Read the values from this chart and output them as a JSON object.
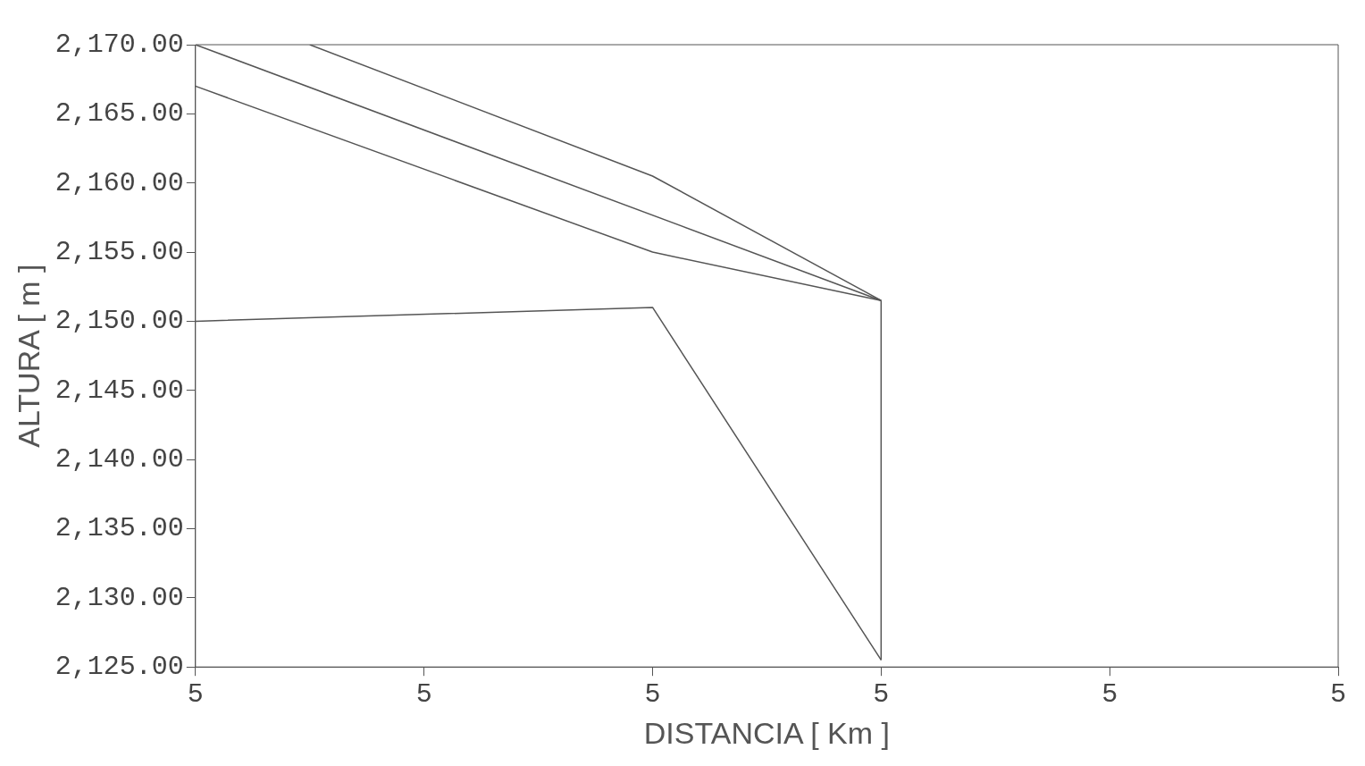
{
  "chart_data": {
    "type": "line",
    "xlabel": "DISTANCIA [ Km ]",
    "ylabel": "ALTURA [ m ]",
    "categories": [
      "5",
      null,
      "5",
      null,
      "5",
      null,
      "5",
      null,
      "5",
      null,
      "5"
    ],
    "ylim": [
      2125,
      2170
    ],
    "yticks": [
      {
        "value": 2125,
        "label": "2,125.00"
      },
      {
        "value": 2130,
        "label": "2,130.00"
      },
      {
        "value": 2135,
        "label": "2,135.00"
      },
      {
        "value": 2140,
        "label": "2,140.00"
      },
      {
        "value": 2145,
        "label": "2,145.00"
      },
      {
        "value": 2150,
        "label": "2,150.00"
      },
      {
        "value": 2155,
        "label": "2,155.00"
      },
      {
        "value": 2160,
        "label": "2,160.00"
      },
      {
        "value": 2165,
        "label": "2,165.00"
      },
      {
        "value": 2170,
        "label": "2,170.00"
      }
    ],
    "grid": false,
    "legend": false,
    "marker": "none",
    "line_style": "solid",
    "series": [
      {
        "color": "#555555",
        "values": [
          null,
          2170,
          null,
          null,
          2160.5,
          null,
          2151.5,
          null,
          null,
          null,
          null
        ]
      },
      {
        "color": "#555555",
        "values": [
          2170,
          null,
          null,
          null,
          null,
          null,
          2151.5,
          null,
          null,
          null,
          null
        ]
      },
      {
        "color": "#555555",
        "values": [
          2167,
          null,
          null,
          null,
          2155,
          null,
          2151.5,
          null,
          null,
          null,
          null
        ]
      },
      {
        "color": "#555555",
        "values": [
          2150,
          null,
          null,
          null,
          2151,
          null,
          2125.5,
          null,
          null,
          null,
          null
        ],
        "errors": [
          null,
          null,
          null,
          null,
          null,
          null,
          [
            2125.5,
            2151.5
          ],
          null,
          null,
          null,
          null
        ]
      }
    ]
  }
}
